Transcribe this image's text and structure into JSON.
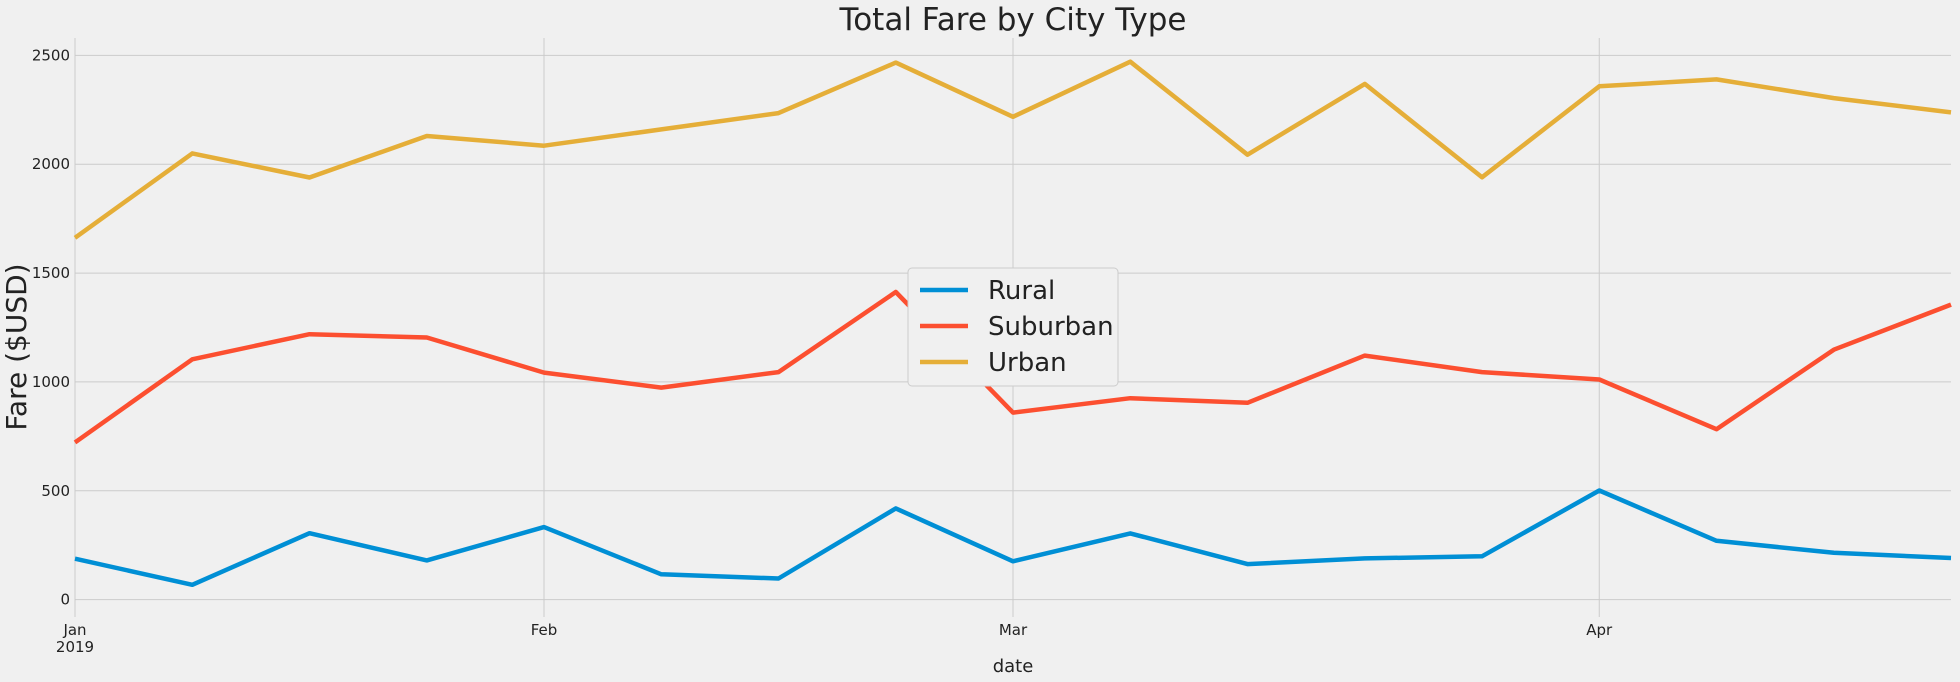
{
  "chart_data": {
    "type": "line",
    "title": "Total Fare by City Type",
    "xlabel": "date",
    "ylabel": "Fare ($USD)",
    "x": [
      "2019-01-06",
      "2019-01-13",
      "2019-01-20",
      "2019-01-27",
      "2019-02-03",
      "2019-02-10",
      "2019-02-17",
      "2019-02-24",
      "2019-03-03",
      "2019-03-10",
      "2019-03-17",
      "2019-03-24",
      "2019-03-31",
      "2019-04-07",
      "2019-04-14",
      "2019-04-21",
      "2019-04-28"
    ],
    "ylim": [
      -80,
      2580
    ],
    "yticks": [
      0,
      500,
      1000,
      1500,
      2000,
      2500
    ],
    "ytick_labels": [
      "0",
      "500",
      "1000",
      "1500",
      "2000",
      "2500"
    ],
    "xticks": [
      {
        "label": "Jan",
        "sublabel": "2019",
        "index": 0
      },
      {
        "label": "Feb",
        "sublabel": "",
        "index": 4
      },
      {
        "label": "Mar",
        "sublabel": "",
        "index": 8
      },
      {
        "label": "Apr",
        "sublabel": "",
        "index": 13
      }
    ],
    "grid": true,
    "legend_position": "center",
    "series": [
      {
        "name": "Rural",
        "color": "#008fd5",
        "values": [
          188,
          68,
          305,
          180,
          333,
          116,
          97,
          419,
          176,
          304,
          163,
          189,
          199,
          501,
          270,
          215,
          191
        ]
      },
      {
        "name": "Suburban",
        "color": "#fc4f30",
        "values": [
          722,
          1104,
          1219,
          1204,
          1043,
          974,
          1045,
          1413,
          859,
          925,
          904,
          1121,
          1045,
          1011,
          783,
          1148,
          1355
        ]
      },
      {
        "name": "Urban",
        "color": "#e5ae38",
        "values": [
          1662,
          2050,
          1939,
          2130,
          2085,
          2160,
          2235,
          2467,
          2218,
          2471,
          2044,
          2369,
          1940,
          2358,
          2390,
          2304,
          2238
        ]
      }
    ]
  }
}
